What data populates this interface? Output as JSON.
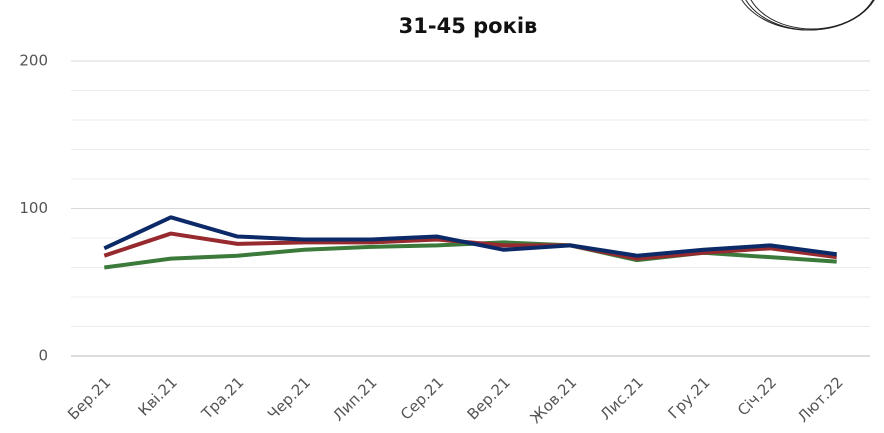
{
  "chart_data": {
    "type": "line",
    "title": "31-45 років",
    "categories": [
      "Бер.21",
      "Кві.21",
      "Тра.21",
      "Чер.21",
      "Лип.21",
      "Сер.21",
      "Вер.21",
      "Жов.21",
      "Лис.21",
      "Гру.21",
      "Січ.22",
      "Лют.22"
    ],
    "series": [
      {
        "color": "#3b7a3a",
        "values": [
          60,
          66,
          68,
          72,
          74,
          75,
          77,
          75,
          65,
          70,
          67,
          64
        ]
      },
      {
        "color": "#962a2e",
        "values": [
          68,
          83,
          76,
          77,
          77,
          79,
          75,
          75,
          66,
          70,
          73,
          67
        ]
      },
      {
        "color": "#0c2a68",
        "values": [
          73,
          94,
          81,
          79,
          79,
          81,
          72,
          75,
          68,
          72,
          75,
          69
        ]
      }
    ],
    "ylim": [
      0,
      200
    ],
    "yticks": [
      0,
      100,
      200
    ],
    "minor_yticks": [
      20,
      40,
      60,
      80,
      120,
      140,
      160,
      180
    ],
    "grid": true
  }
}
